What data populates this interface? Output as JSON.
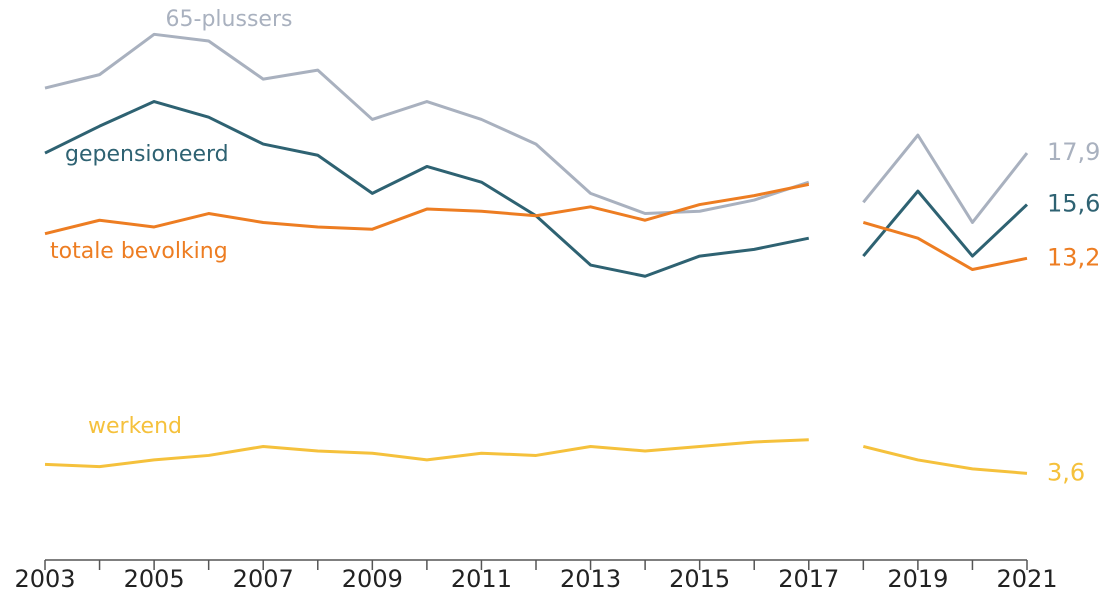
{
  "chart_data": {
    "type": "line",
    "x": [
      2003,
      2004,
      2005,
      2006,
      2007,
      2008,
      2009,
      2010,
      2011,
      2012,
      2013,
      2014,
      2015,
      2016,
      2017,
      2018,
      2019,
      2020,
      2021
    ],
    "xlim": [
      2003,
      2021
    ],
    "xticks": [
      2003,
      2005,
      2007,
      2009,
      2011,
      2013,
      2015,
      2017,
      2019,
      2021
    ],
    "ylim": [
      0,
      25
    ],
    "break_after": 2017,
    "series": [
      {
        "name": "65-plussers",
        "color": "#a9b1bf",
        "end_label": "17,9",
        "values": [
          20.8,
          21.4,
          23.2,
          22.9,
          21.2,
          21.6,
          19.4,
          20.2,
          19.4,
          18.3,
          16.1,
          15.2,
          15.3,
          15.8,
          16.6,
          15.7,
          18.7,
          14.8,
          17.9
        ]
      },
      {
        "name": "gepensioneerd",
        "color": "#2e6272",
        "end_label": "15,6",
        "values": [
          17.9,
          19.1,
          20.2,
          19.5,
          18.3,
          17.8,
          16.1,
          17.3,
          16.6,
          15.1,
          12.9,
          12.4,
          13.3,
          13.6,
          14.1,
          13.3,
          16.2,
          13.3,
          15.6
        ]
      },
      {
        "name": "totale bevolking",
        "color": "#ed7d22",
        "end_label": "13,2",
        "values": [
          14.3,
          14.9,
          14.6,
          15.2,
          14.8,
          14.6,
          14.5,
          15.4,
          15.3,
          15.1,
          15.5,
          14.9,
          15.6,
          16.0,
          16.5,
          14.8,
          14.1,
          12.7,
          13.2
        ]
      },
      {
        "name": "werkend",
        "color": "#f5c13c",
        "end_label": "3,6",
        "values": [
          4.0,
          3.9,
          4.2,
          4.4,
          4.8,
          4.6,
          4.5,
          4.2,
          4.5,
          4.4,
          4.8,
          4.6,
          4.8,
          5.0,
          5.1,
          4.8,
          4.2,
          3.8,
          3.6
        ]
      }
    ]
  }
}
